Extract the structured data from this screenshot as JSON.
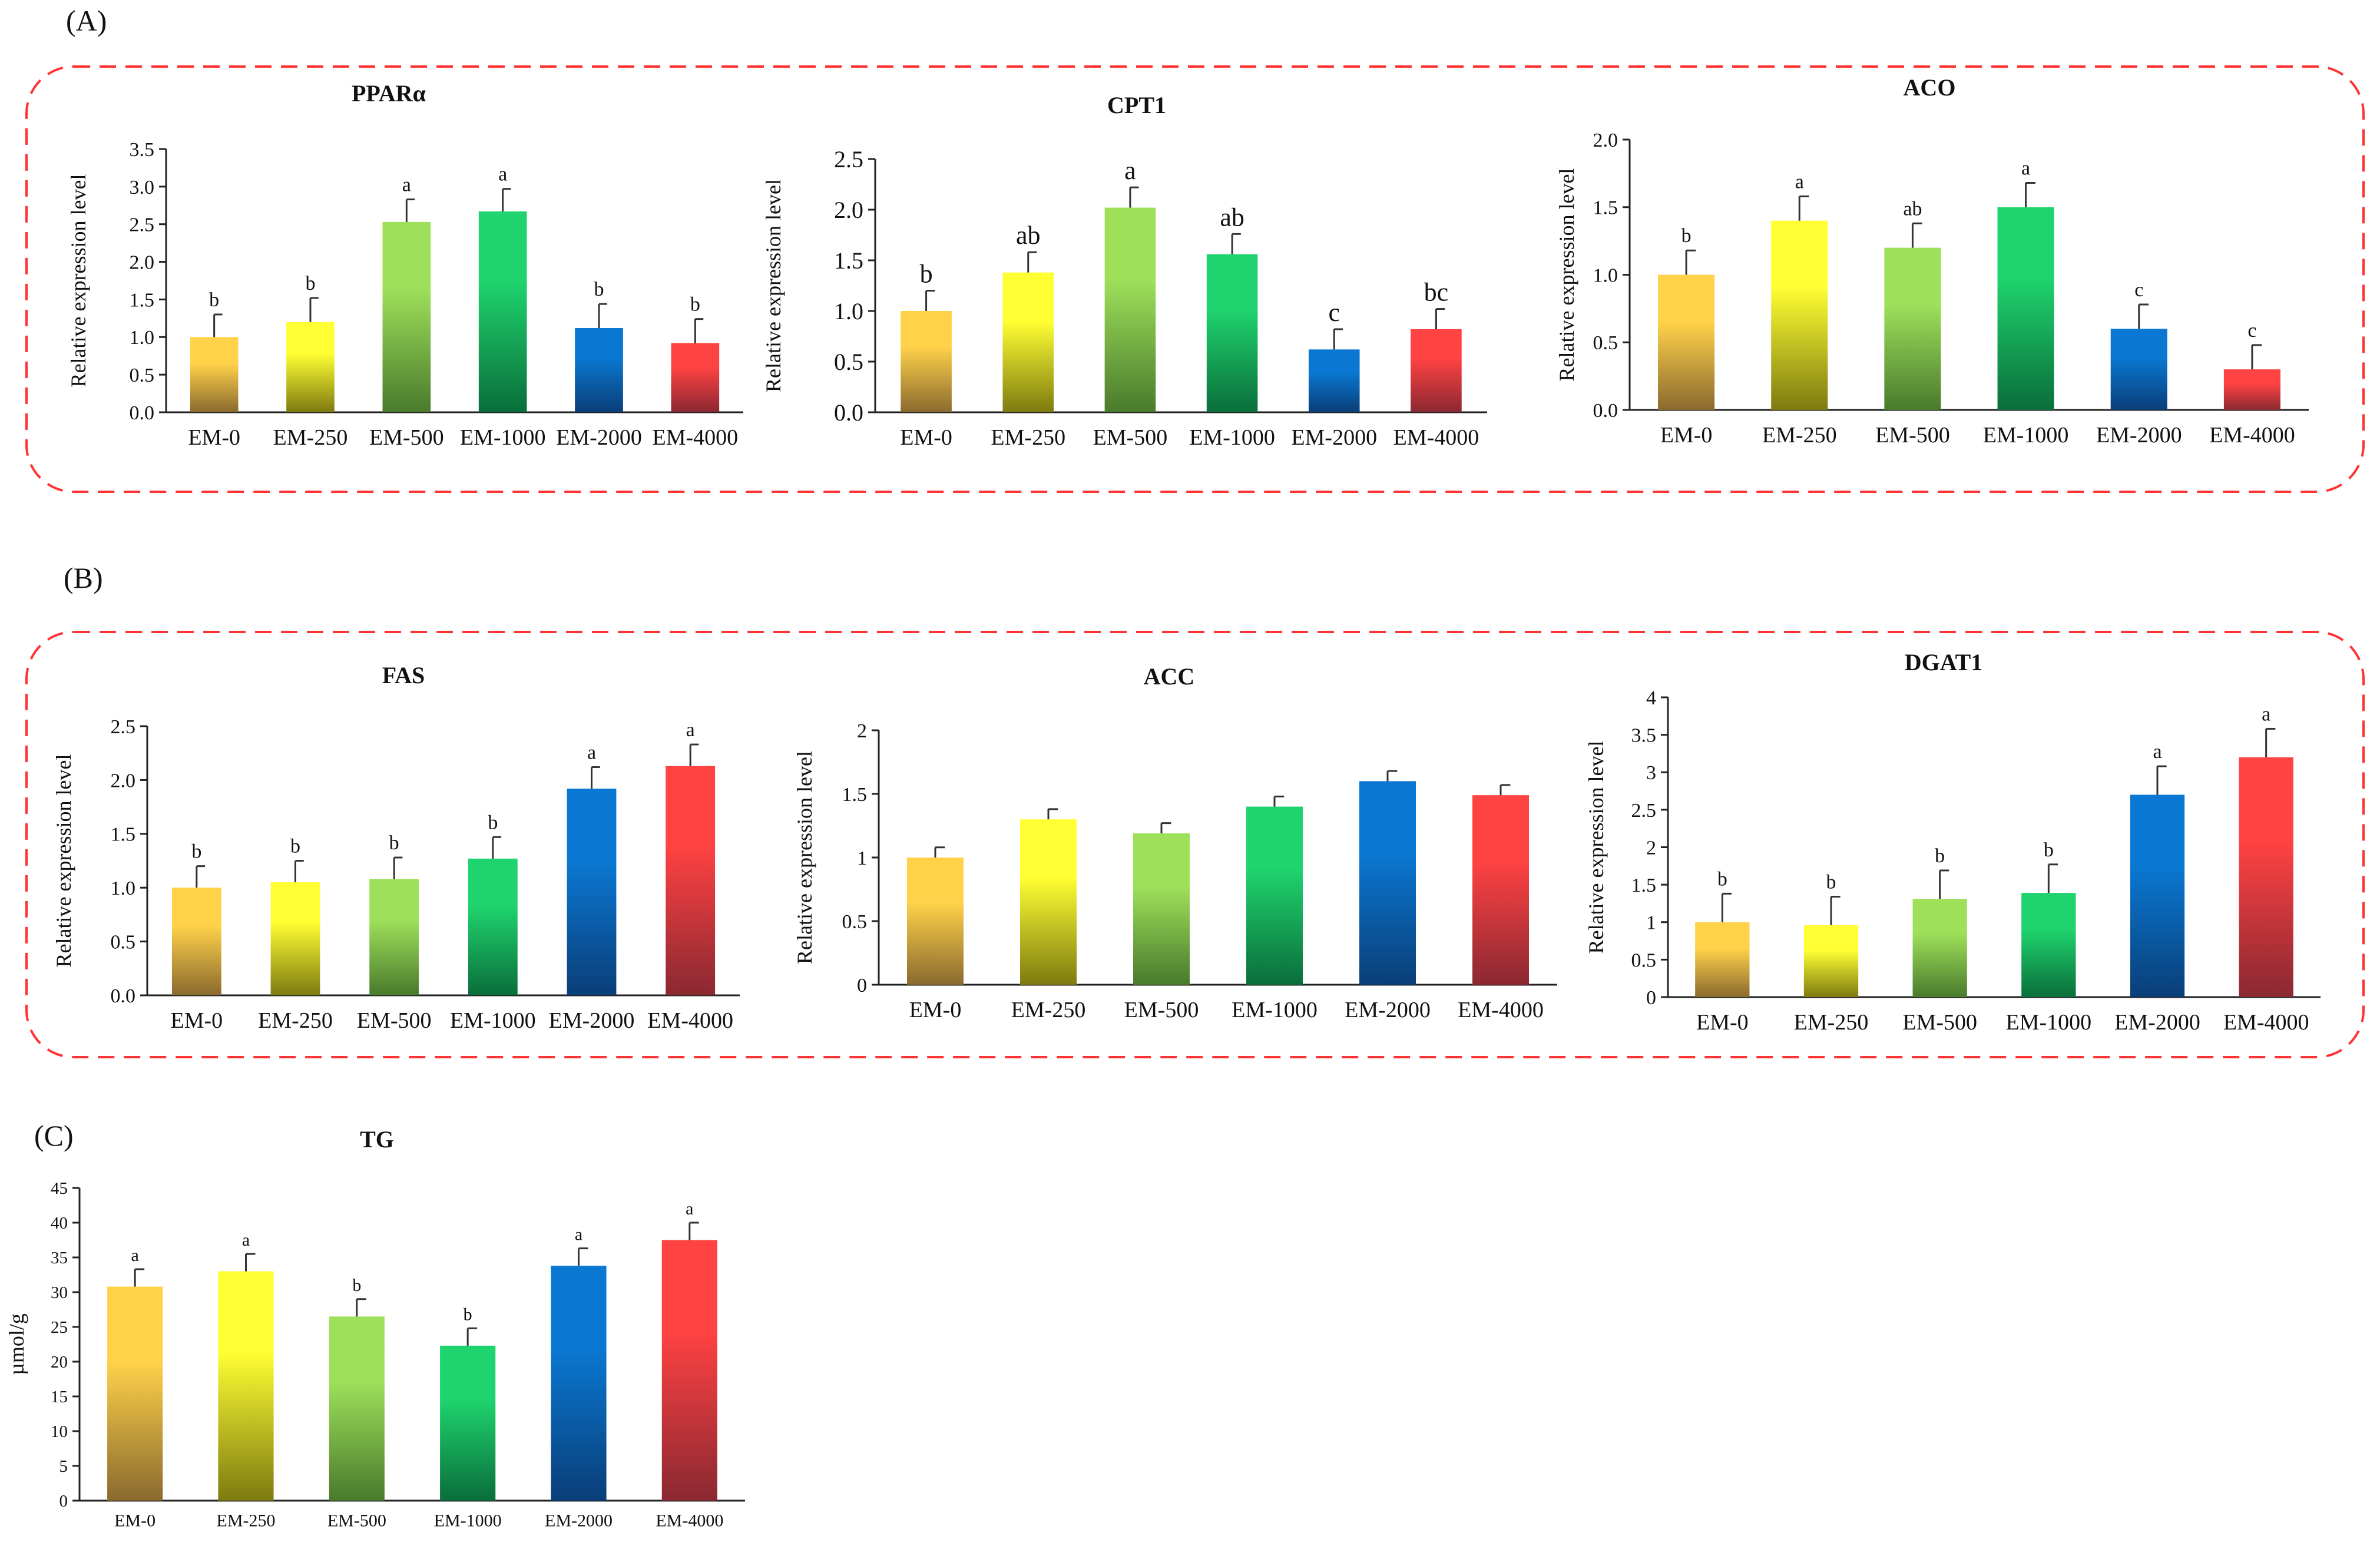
{
  "panels": {
    "A": {
      "label": "(A)"
    },
    "B": {
      "label": "(B)"
    },
    "C": {
      "label": "(C)"
    }
  },
  "colors": {
    "top": [
      "#ffd24a",
      "#ffff33",
      "#9ee05a",
      "#1fd36e",
      "#0a78d2",
      "#ff4242"
    ],
    "bottom": [
      "#8a6a2e",
      "#7e7a10",
      "#4a7a2c",
      "#0a6e3a",
      "#0a3e78",
      "#8a2832"
    ],
    "box": "#ff3333",
    "axis": "#222222",
    "error": "#333333"
  },
  "chart_data": [
    {
      "id": "ppara",
      "type": "bar",
      "title": "PPARα",
      "ylabel": "Relative expression level",
      "categories": [
        "EM-0",
        "EM-250",
        "EM-500",
        "EM-1000",
        "EM-2000",
        "EM-4000"
      ],
      "values": [
        1.0,
        1.2,
        2.53,
        2.67,
        1.12,
        0.92
      ],
      "errors": [
        0.3,
        0.32,
        0.3,
        0.3,
        0.32,
        0.32
      ],
      "letters": [
        "b",
        "b",
        "a",
        "a",
        "b",
        "b"
      ],
      "ylim": [
        0,
        3.5
      ],
      "yticks": [
        "0.0",
        "0.5",
        "1.0",
        "1.5",
        "2.0",
        "2.5",
        "3.0",
        "3.5"
      ]
    },
    {
      "id": "cpt1",
      "type": "bar",
      "title": "CPT1",
      "ylabel": "Relative expression level",
      "categories": [
        "EM-0",
        "EM-250",
        "EM-500",
        "EM-1000",
        "EM-2000",
        "EM-4000"
      ],
      "values": [
        1.0,
        1.38,
        2.02,
        1.56,
        0.62,
        0.82
      ],
      "errors": [
        0.2,
        0.2,
        0.2,
        0.2,
        0.2,
        0.2
      ],
      "letters": [
        "b",
        "ab",
        "a",
        "ab",
        "c",
        "bc"
      ],
      "ylim": [
        0,
        2.5
      ],
      "yticks": [
        "0.0",
        "0.5",
        "1.0",
        "1.5",
        "2.0",
        "2.5"
      ]
    },
    {
      "id": "aco",
      "type": "bar",
      "title": "ACO",
      "ylabel": "Relative expression level",
      "categories": [
        "EM-0",
        "EM-250",
        "EM-500",
        "EM-1000",
        "EM-2000",
        "EM-4000"
      ],
      "values": [
        1.0,
        1.4,
        1.2,
        1.5,
        0.6,
        0.3
      ],
      "errors": [
        0.18,
        0.18,
        0.18,
        0.18,
        0.18,
        0.18
      ],
      "letters": [
        "b",
        "a",
        "ab",
        "a",
        "c",
        "c"
      ],
      "ylim": [
        0,
        2.0
      ],
      "yticks": [
        "0.0",
        "0.5",
        "1.0",
        "1.5",
        "2.0"
      ]
    },
    {
      "id": "fas",
      "type": "bar",
      "title": "FAS",
      "ylabel": "Relative expression level",
      "categories": [
        "EM-0",
        "EM-250",
        "EM-500",
        "EM-1000",
        "EM-2000",
        "EM-4000"
      ],
      "values": [
        1.0,
        1.05,
        1.08,
        1.27,
        1.92,
        2.13
      ],
      "errors": [
        0.2,
        0.2,
        0.2,
        0.2,
        0.2,
        0.2
      ],
      "letters": [
        "b",
        "b",
        "b",
        "b",
        "a",
        "a"
      ],
      "ylim": [
        0,
        2.5
      ],
      "yticks": [
        "0.0",
        "0.5",
        "1.0",
        "1.5",
        "2.0",
        "2.5"
      ]
    },
    {
      "id": "acc",
      "type": "bar",
      "title": "ACC",
      "ylabel": "Relative expression level",
      "categories": [
        "EM-0",
        "EM-250",
        "EM-500",
        "EM-1000",
        "EM-2000",
        "EM-4000"
      ],
      "values": [
        1.0,
        1.3,
        1.19,
        1.4,
        1.6,
        1.49
      ],
      "errors": [
        0.08,
        0.08,
        0.08,
        0.08,
        0.08,
        0.08
      ],
      "letters": [
        "",
        "",
        "",
        "",
        "",
        ""
      ],
      "ylim": [
        0,
        2
      ],
      "yticks": [
        "0",
        "0.5",
        "1",
        "1.5",
        "2"
      ]
    },
    {
      "id": "dgat1",
      "type": "bar",
      "title": "DGAT1",
      "ylabel": "Relative expression level",
      "categories": [
        "EM-0",
        "EM-250",
        "EM-500",
        "EM-1000",
        "EM-2000",
        "EM-4000"
      ],
      "values": [
        1.0,
        0.96,
        1.31,
        1.39,
        2.7,
        3.2
      ],
      "errors": [
        0.38,
        0.38,
        0.38,
        0.38,
        0.38,
        0.38
      ],
      "letters": [
        "b",
        "b",
        "b",
        "b",
        "a",
        "a"
      ],
      "ylim": [
        0,
        4
      ],
      "yticks": [
        "0",
        "0.5",
        "1",
        "1.5",
        "2",
        "2.5",
        "3",
        "3.5",
        "4"
      ]
    },
    {
      "id": "tg",
      "type": "bar",
      "title": "TG",
      "ylabel": "µmol/g",
      "categories": [
        "EM-0",
        "EM-250",
        "EM-500",
        "EM-1000",
        "EM-2000",
        "EM-4000"
      ],
      "values": [
        30.8,
        33.0,
        26.5,
        22.3,
        33.8,
        37.5
      ],
      "errors": [
        2.5,
        2.5,
        2.5,
        2.5,
        2.5,
        2.5
      ],
      "letters": [
        "a",
        "a",
        "b",
        "b",
        "a",
        "a"
      ],
      "ylim": [
        0,
        45
      ],
      "yticks": [
        "0",
        "5",
        "10",
        "15",
        "20",
        "25",
        "30",
        "35",
        "40",
        "45"
      ]
    }
  ]
}
